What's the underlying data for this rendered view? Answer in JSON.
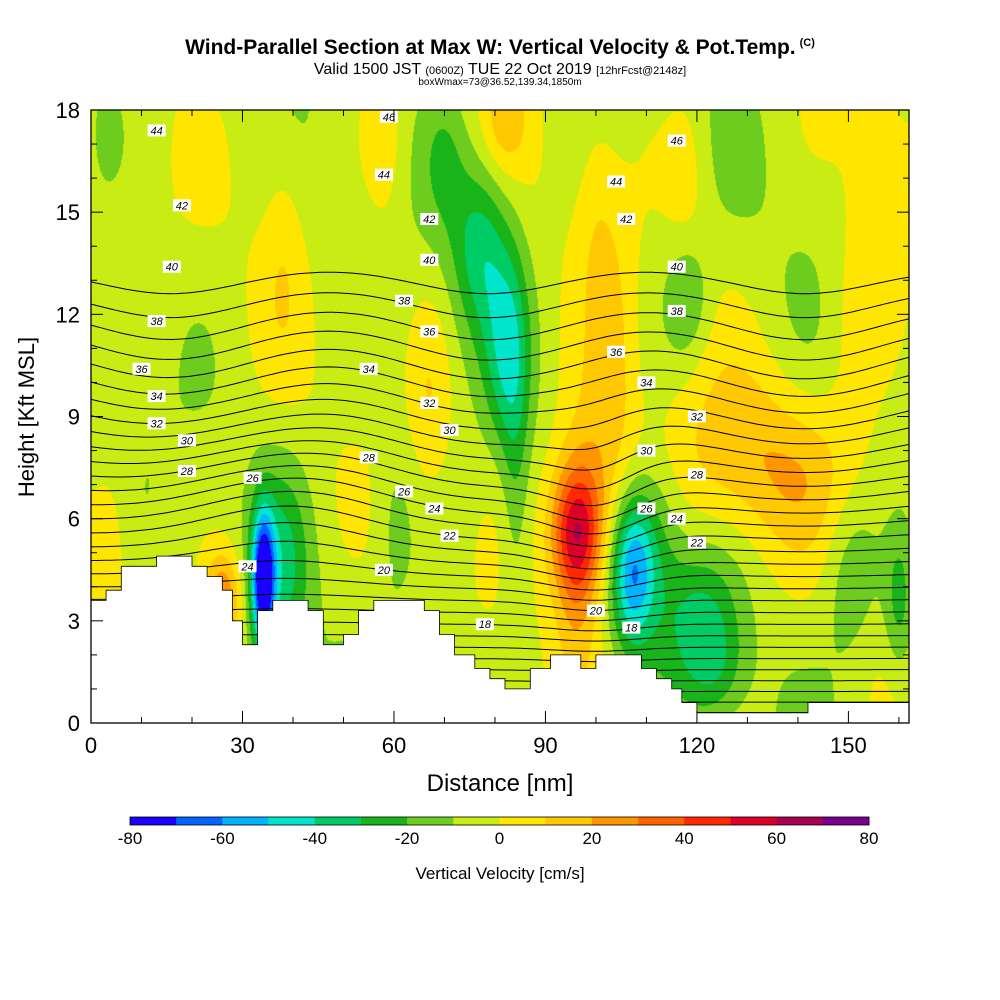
{
  "title": "Wind-Parallel Section at Max W: Vertical Velocity & Pot.Temp.",
  "copyright": "(C)",
  "subtitle_main": "Valid 1500 JST",
  "subtitle_utc": "(0600Z)",
  "subtitle_date": "TUE 22 Oct 2019",
  "subtitle_fcst": "[12hrFcst@2148z]",
  "subtitle2": "boxWmax=73@36.52,139.34,1850m",
  "colorbar": {
    "title": "Vertical Velocity [cm/s]",
    "tick_labels": [
      "-80",
      "-60",
      "-40",
      "-20",
      "0",
      "20",
      "40",
      "60",
      "80"
    ],
    "colors": [
      "#1a00ff",
      "#0066ff",
      "#00b4ff",
      "#00e6cc",
      "#00cc66",
      "#19b419",
      "#6ecc1e",
      "#c8ec14",
      "#ffe600",
      "#ffc800",
      "#ff9600",
      "#ff6400",
      "#ff2800",
      "#dc0028",
      "#aa0050",
      "#78008c"
    ]
  },
  "chart_data": {
    "type": "heatmap",
    "xlabel": "Distance [nm]",
    "ylabel": "Height [Kft MSL]",
    "xlim": [
      0,
      162
    ],
    "ylim": [
      0,
      18
    ],
    "x_ticks": [
      "0",
      "30",
      "60",
      "90",
      "120",
      "150"
    ],
    "y_ticks": [
      "0",
      "3",
      "6",
      "9",
      "12",
      "15",
      "18"
    ],
    "x_minor_step": 10,
    "y_minor_step": 1,
    "terrain": [
      [
        0,
        3.6
      ],
      [
        3,
        3.6
      ],
      [
        3,
        3.9
      ],
      [
        6,
        3.9
      ],
      [
        6,
        4.6
      ],
      [
        13,
        4.6
      ],
      [
        13,
        4.9
      ],
      [
        20,
        4.9
      ],
      [
        20,
        4.6
      ],
      [
        23,
        4.6
      ],
      [
        23,
        4.3
      ],
      [
        26,
        4.3
      ],
      [
        26,
        3.9
      ],
      [
        28,
        3.9
      ],
      [
        28,
        3.0
      ],
      [
        30,
        3.0
      ],
      [
        30,
        2.3
      ],
      [
        33,
        2.3
      ],
      [
        33,
        3.3
      ],
      [
        36,
        3.3
      ],
      [
        36,
        3.6
      ],
      [
        43,
        3.6
      ],
      [
        43,
        3.3
      ],
      [
        46,
        3.3
      ],
      [
        46,
        2.3
      ],
      [
        50,
        2.3
      ],
      [
        50,
        2.6
      ],
      [
        53,
        2.6
      ],
      [
        53,
        3.3
      ],
      [
        56,
        3.3
      ],
      [
        56,
        3.6
      ],
      [
        66,
        3.6
      ],
      [
        66,
        3.3
      ],
      [
        69,
        3.3
      ],
      [
        69,
        2.6
      ],
      [
        72,
        2.6
      ],
      [
        72,
        2.0
      ],
      [
        76,
        2.0
      ],
      [
        76,
        1.6
      ],
      [
        79,
        1.6
      ],
      [
        79,
        1.3
      ],
      [
        82,
        1.3
      ],
      [
        82,
        1.0
      ],
      [
        87,
        1.0
      ],
      [
        87,
        1.6
      ],
      [
        91,
        1.6
      ],
      [
        91,
        2.0
      ],
      [
        97,
        2.0
      ],
      [
        97,
        1.6
      ],
      [
        100,
        1.6
      ],
      [
        100,
        2.0
      ],
      [
        109,
        2.0
      ],
      [
        109,
        1.6
      ],
      [
        112,
        1.6
      ],
      [
        112,
        1.3
      ],
      [
        115,
        1.3
      ],
      [
        115,
        1.0
      ],
      [
        117,
        1.0
      ],
      [
        117,
        0.6
      ],
      [
        120,
        0.6
      ],
      [
        120,
        0.3
      ],
      [
        142,
        0.3
      ],
      [
        142,
        0.6
      ],
      [
        162,
        0.6
      ]
    ],
    "w_field": [
      {
        "x": 96,
        "y": 5.6,
        "w": 55,
        "sx": 3.5,
        "sy": 1.4
      },
      {
        "x": 100,
        "y": 7.0,
        "w": 25,
        "sx": 6,
        "sy": 2.5
      },
      {
        "x": 96,
        "y": 3.0,
        "w": 12,
        "sx": 3,
        "sy": 1.5
      },
      {
        "x": 26,
        "y": 3.6,
        "w": 35,
        "sx": 2.5,
        "sy": 1.0
      },
      {
        "x": 34,
        "y": 4.2,
        "w": -75,
        "sx": 1.6,
        "sy": 1.4
      },
      {
        "x": 38,
        "y": 4.5,
        "w": -22,
        "sx": 3.5,
        "sy": 2.0
      },
      {
        "x": 107,
        "y": 4.4,
        "w": -42,
        "sx": 3,
        "sy": 1.5
      },
      {
        "x": 110,
        "y": 5.2,
        "w": -25,
        "sx": 5,
        "sy": 2.0
      },
      {
        "x": 121,
        "y": 2.8,
        "w": -25,
        "sx": 5,
        "sy": 1.5
      },
      {
        "x": 77,
        "y": 14.0,
        "w": -28,
        "sx": 4,
        "sy": 1.8
      },
      {
        "x": 82,
        "y": 11.0,
        "w": -25,
        "sx": 3,
        "sy": 2.0
      },
      {
        "x": 84,
        "y": 7.5,
        "w": -15,
        "sx": 2,
        "sy": 3.5
      },
      {
        "x": 70,
        "y": 16.5,
        "w": -12,
        "sx": 3,
        "sy": 1.5
      },
      {
        "x": 67,
        "y": 9.5,
        "w": 12,
        "sx": 3,
        "sy": 2.0
      },
      {
        "x": 135,
        "y": 7.2,
        "w": 18,
        "sx": 15,
        "sy": 1.6
      },
      {
        "x": 128,
        "y": 9.0,
        "w": 8,
        "sx": 10,
        "sy": 1.5
      },
      {
        "x": 82,
        "y": 17.7,
        "w": 15,
        "sx": 3,
        "sy": 1.0
      },
      {
        "x": 156,
        "y": 15.0,
        "w": 12,
        "sx": 5,
        "sy": 3.0
      },
      {
        "x": 150,
        "y": 11.5,
        "w": 8,
        "sx": 4,
        "sy": 2.0
      },
      {
        "x": 104,
        "y": 11.5,
        "w": 10,
        "sx": 3,
        "sy": 2.5
      },
      {
        "x": 100,
        "y": 15.0,
        "w": 10,
        "sx": 3,
        "sy": 2.5
      },
      {
        "x": 58,
        "y": 17.0,
        "w": 12,
        "sx": 3,
        "sy": 2.0
      },
      {
        "x": 38,
        "y": 14.5,
        "w": 10,
        "sx": 3,
        "sy": 2.5
      },
      {
        "x": 118,
        "y": 16.0,
        "w": 10,
        "sx": 3,
        "sy": 2.0
      },
      {
        "x": 4,
        "y": 5.5,
        "w": 10,
        "sx": 3,
        "sy": 2.0
      },
      {
        "x": 118,
        "y": 12.5,
        "w": -18,
        "sx": 3,
        "sy": 1.3
      },
      {
        "x": 150,
        "y": 4.5,
        "w": -15,
        "sx": 4,
        "sy": 2.0
      },
      {
        "x": 160,
        "y": 3.5,
        "w": -20,
        "sx": 2,
        "sy": 1.5
      },
      {
        "x": 3,
        "y": 17.5,
        "w": -12,
        "sx": 2,
        "sy": 1.0
      },
      {
        "x": 124,
        "y": 1.5,
        "w": -12,
        "sx": 4,
        "sy": 1.0
      },
      {
        "x": 60,
        "y": 6.0,
        "w": -10,
        "sx": 3,
        "sy": 2.0
      }
    ],
    "theta_levels": [
      16,
      17,
      18,
      19,
      20,
      21,
      22,
      23,
      24,
      25,
      26,
      27,
      28,
      29,
      30,
      31,
      32,
      33,
      34,
      35,
      36,
      37,
      38,
      39,
      40,
      41,
      42,
      43,
      44,
      45,
      46,
      47
    ],
    "theta_labels": [
      {
        "x": 13,
        "y": 17.4,
        "t": "44"
      },
      {
        "x": 18,
        "y": 15.2,
        "t": "42"
      },
      {
        "x": 16,
        "y": 13.4,
        "t": "40"
      },
      {
        "x": 13,
        "y": 11.8,
        "t": "38"
      },
      {
        "x": 10,
        "y": 10.4,
        "t": "36"
      },
      {
        "x": 13,
        "y": 9.6,
        "t": "34"
      },
      {
        "x": 13,
        "y": 8.8,
        "t": "32"
      },
      {
        "x": 19,
        "y": 8.3,
        "t": "30"
      },
      {
        "x": 19,
        "y": 7.4,
        "t": "28"
      },
      {
        "x": 32,
        "y": 7.2,
        "t": "26"
      },
      {
        "x": 31,
        "y": 4.6,
        "t": "24"
      },
      {
        "x": 59,
        "y": 17.8,
        "t": "46"
      },
      {
        "x": 58,
        "y": 16.1,
        "t": "44"
      },
      {
        "x": 67,
        "y": 14.8,
        "t": "42"
      },
      {
        "x": 67,
        "y": 13.6,
        "t": "40"
      },
      {
        "x": 62,
        "y": 12.4,
        "t": "38"
      },
      {
        "x": 67,
        "y": 11.5,
        "t": "36"
      },
      {
        "x": 55,
        "y": 10.4,
        "t": "34"
      },
      {
        "x": 67,
        "y": 9.4,
        "t": "32"
      },
      {
        "x": 71,
        "y": 8.6,
        "t": "30"
      },
      {
        "x": 55,
        "y": 7.8,
        "t": "28"
      },
      {
        "x": 62,
        "y": 6.8,
        "t": "26"
      },
      {
        "x": 68,
        "y": 6.3,
        "t": "24"
      },
      {
        "x": 71,
        "y": 5.5,
        "t": "22"
      },
      {
        "x": 58,
        "y": 4.5,
        "t": "20"
      },
      {
        "x": 78,
        "y": 2.9,
        "t": "18"
      },
      {
        "x": 116,
        "y": 17.1,
        "t": "46"
      },
      {
        "x": 104,
        "y": 15.9,
        "t": "44"
      },
      {
        "x": 106,
        "y": 14.8,
        "t": "42"
      },
      {
        "x": 116,
        "y": 13.4,
        "t": "40"
      },
      {
        "x": 116,
        "y": 12.1,
        "t": "38"
      },
      {
        "x": 104,
        "y": 10.9,
        "t": "36"
      },
      {
        "x": 110,
        "y": 10.0,
        "t": "34"
      },
      {
        "x": 120,
        "y": 9.0,
        "t": "32"
      },
      {
        "x": 110,
        "y": 8.0,
        "t": "30"
      },
      {
        "x": 120,
        "y": 7.3,
        "t": "28"
      },
      {
        "x": 110,
        "y": 6.3,
        "t": "26"
      },
      {
        "x": 116,
        "y": 6.0,
        "t": "24"
      },
      {
        "x": 120,
        "y": 5.3,
        "t": "22"
      },
      {
        "x": 100,
        "y": 3.3,
        "t": "20"
      },
      {
        "x": 107,
        "y": 2.8,
        "t": "18"
      }
    ]
  }
}
